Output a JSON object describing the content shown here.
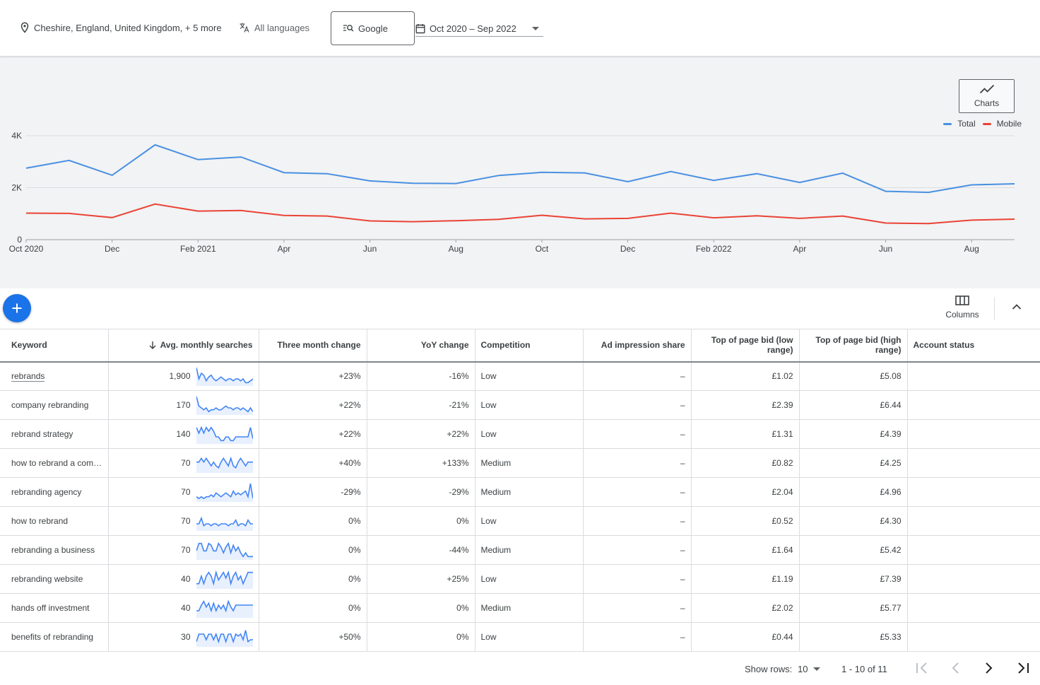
{
  "filters": {
    "location": "Cheshire, England, United Kingdom, + 5 more",
    "language": "All languages",
    "network": "Google",
    "date_range": "Oct 2020 – Sep 2022"
  },
  "chart_panel": {
    "charts_button": "Charts",
    "legend": [
      {
        "name": "Total",
        "color": "#4a90e2"
      },
      {
        "name": "Mobile",
        "color": "#ea4335"
      }
    ]
  },
  "chart_data": {
    "type": "line",
    "x": [
      "Oct 2020",
      "Nov 2020",
      "Dec 2020",
      "Jan 2021",
      "Feb 2021",
      "Mar 2021",
      "Apr 2021",
      "May 2021",
      "Jun 2021",
      "Jul 2021",
      "Aug 2021",
      "Sep 2021",
      "Oct 2021",
      "Nov 2021",
      "Dec 2021",
      "Jan 2022",
      "Feb 2022",
      "Mar 2022",
      "Apr 2022",
      "May 2022",
      "Jun 2022",
      "Jul 2022",
      "Aug 2022",
      "Sep 2022"
    ],
    "tick_labels": [
      {
        "index": 0,
        "label": "Oct 2020"
      },
      {
        "index": 2,
        "label": "Dec"
      },
      {
        "index": 4,
        "label": "Feb 2021"
      },
      {
        "index": 6,
        "label": "Apr"
      },
      {
        "index": 8,
        "label": "Jun"
      },
      {
        "index": 10,
        "label": "Aug"
      },
      {
        "index": 12,
        "label": "Oct"
      },
      {
        "index": 14,
        "label": "Dec"
      },
      {
        "index": 16,
        "label": "Feb 2022"
      },
      {
        "index": 18,
        "label": "Apr"
      },
      {
        "index": 20,
        "label": "Jun"
      },
      {
        "index": 22,
        "label": "Aug"
      }
    ],
    "y_ticks": [
      {
        "value": 0,
        "label": "0"
      },
      {
        "value": 2000,
        "label": "2K"
      },
      {
        "value": 4000,
        "label": "4K"
      }
    ],
    "ylim": [
      0,
      4000
    ],
    "series": [
      {
        "name": "Total",
        "color": "#4a90e2",
        "values": [
          2750,
          3050,
          2480,
          3650,
          3080,
          3180,
          2580,
          2540,
          2260,
          2170,
          2160,
          2470,
          2590,
          2570,
          2230,
          2620,
          2280,
          2540,
          2200,
          2560,
          1860,
          1820,
          2110,
          2150
        ]
      },
      {
        "name": "Mobile",
        "color": "#ea4335",
        "values": [
          1020,
          1010,
          850,
          1370,
          1100,
          1120,
          930,
          910,
          720,
          690,
          730,
          780,
          940,
          800,
          820,
          1020,
          840,
          920,
          820,
          910,
          640,
          620,
          750,
          790
        ]
      }
    ],
    "grid": true,
    "legend_position": "top-right"
  },
  "toolbar": {
    "columns_label": "Columns"
  },
  "table": {
    "headers": {
      "keyword": "Keyword",
      "avg": "Avg. monthly searches",
      "three_month": "Three month change",
      "yoy": "YoY change",
      "competition": "Competition",
      "ad_share": "Ad impression share",
      "bid_low": "Top of page bid (low range)",
      "bid_high": "Top of page bid (high range)",
      "account_status": "Account status"
    },
    "rows": [
      {
        "keyword": "rebrands",
        "avg": "1,900",
        "three_month": "+23%",
        "yoy": "-16%",
        "competition": "Low",
        "ad_share": "–",
        "bid_low": "£1.02",
        "bid_high": "£5.08",
        "account_status": "",
        "trend": [
          9,
          3,
          6,
          5,
          2,
          4,
          5,
          3,
          2,
          3,
          4,
          3,
          2,
          3,
          3,
          2,
          3,
          3,
          2,
          3,
          1,
          1,
          2,
          3
        ]
      },
      {
        "keyword": "company rebranding",
        "avg": "170",
        "three_month": "+22%",
        "yoy": "-21%",
        "competition": "Low",
        "ad_share": "–",
        "bid_low": "£2.39",
        "bid_high": "£6.44",
        "account_status": "",
        "trend": [
          9,
          4,
          3,
          2,
          3,
          1,
          2,
          2,
          3,
          2,
          2,
          3,
          4,
          3,
          3,
          2,
          3,
          3,
          2,
          3,
          2,
          1,
          3,
          1
        ]
      },
      {
        "keyword": "rebrand strategy",
        "avg": "140",
        "three_month": "+22%",
        "yoy": "+22%",
        "competition": "Low",
        "ad_share": "–",
        "bid_low": "£1.31",
        "bid_high": "£4.39",
        "account_status": "",
        "trend": [
          8,
          5,
          8,
          5,
          8,
          6,
          8,
          6,
          3,
          3,
          1,
          1,
          3,
          3,
          1,
          1,
          3,
          3,
          3,
          3,
          3,
          3,
          8,
          2
        ]
      },
      {
        "keyword": "how to rebrand a com…",
        "avg": "70",
        "three_month": "+40%",
        "yoy": "+133%",
        "competition": "Medium",
        "ad_share": "–",
        "bid_low": "£0.82",
        "bid_high": "£4.25",
        "account_status": "",
        "trend": [
          5,
          5,
          7,
          5,
          7,
          5,
          3,
          5,
          3,
          2,
          5,
          7,
          5,
          3,
          7,
          3,
          2,
          5,
          7,
          5,
          3,
          5,
          5,
          5
        ]
      },
      {
        "keyword": "rebranding agency",
        "avg": "70",
        "three_month": "-29%",
        "yoy": "-29%",
        "competition": "Medium",
        "ad_share": "–",
        "bid_low": "£2.04",
        "bid_high": "£4.96",
        "account_status": "",
        "trend": [
          2,
          1,
          2,
          1,
          2,
          2,
          3,
          2,
          4,
          3,
          2,
          3,
          4,
          3,
          2,
          5,
          3,
          4,
          3,
          4,
          5,
          2,
          9,
          1
        ]
      },
      {
        "keyword": "how to rebrand",
        "avg": "70",
        "three_month": "0%",
        "yoy": "0%",
        "competition": "Low",
        "ad_share": "–",
        "bid_low": "£0.52",
        "bid_high": "£4.30",
        "account_status": "",
        "trend": [
          3,
          3,
          6,
          2,
          3,
          3,
          2,
          3,
          3,
          2,
          3,
          3,
          3,
          2,
          3,
          3,
          5,
          2,
          3,
          3,
          2,
          5,
          3,
          3
        ]
      },
      {
        "keyword": "rebranding a business",
        "avg": "70",
        "three_month": "0%",
        "yoy": "-44%",
        "competition": "Medium",
        "ad_share": "–",
        "bid_low": "£1.64",
        "bid_high": "£5.42",
        "account_status": "",
        "trend": [
          4,
          8,
          8,
          4,
          4,
          8,
          7,
          4,
          4,
          8,
          6,
          3,
          6,
          8,
          3,
          7,
          4,
          6,
          3,
          1,
          3,
          1,
          1,
          1
        ]
      },
      {
        "keyword": "rebranding website",
        "avg": "40",
        "three_month": "0%",
        "yoy": "+25%",
        "competition": "Low",
        "ad_share": "–",
        "bid_low": "£1.19",
        "bid_high": "£7.39",
        "account_status": "",
        "trend": [
          2,
          2,
          6,
          2,
          6,
          8,
          6,
          2,
          8,
          4,
          6,
          8,
          5,
          8,
          2,
          6,
          8,
          4,
          6,
          2,
          5,
          8,
          8,
          8
        ]
      },
      {
        "keyword": "hands off investment",
        "avg": "40",
        "three_month": "0%",
        "yoy": "0%",
        "competition": "Medium",
        "ad_share": "–",
        "bid_low": "£2.02",
        "bid_high": "£5.77",
        "account_status": "",
        "trend": [
          3,
          3,
          6,
          8,
          5,
          7,
          3,
          7,
          3,
          6,
          4,
          6,
          3,
          8,
          5,
          3,
          6,
          6,
          6,
          6,
          6,
          6,
          6,
          6
        ]
      },
      {
        "keyword": "benefits of rebranding",
        "avg": "30",
        "three_month": "+50%",
        "yoy": "0%",
        "competition": "Low",
        "ad_share": "–",
        "bid_low": "£0.44",
        "bid_high": "£5.33",
        "account_status": "",
        "trend": [
          2,
          6,
          6,
          6,
          3,
          6,
          6,
          3,
          6,
          2,
          6,
          6,
          2,
          6,
          6,
          2,
          6,
          5,
          6,
          3,
          8,
          2,
          3,
          3
        ]
      }
    ]
  },
  "pagination": {
    "show_rows_label": "Show rows:",
    "rows_value": "10",
    "range": "1 - 10 of 11"
  }
}
